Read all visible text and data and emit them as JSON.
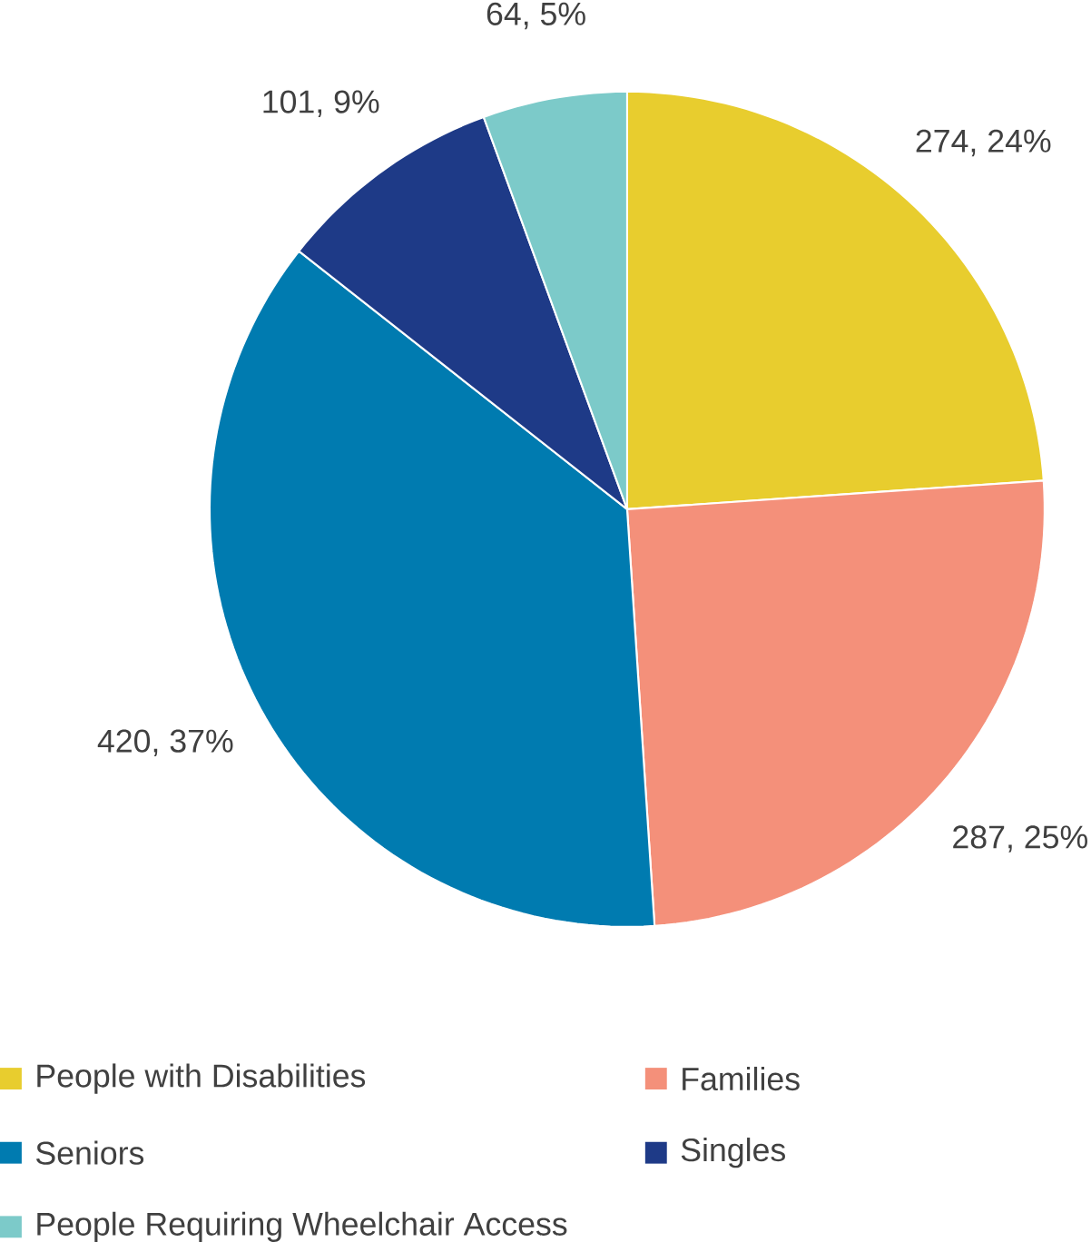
{
  "chart_data": {
    "type": "pie",
    "categories": [
      "People with Disabilities",
      "Families",
      "Seniors",
      "Singles",
      "People Requiring Wheelchair Access"
    ],
    "values": [
      274,
      287,
      420,
      101,
      64
    ],
    "colors": [
      "#e8cd2e",
      "#f4907a",
      "#007bb0",
      "#1e3a87",
      "#7ccac9"
    ],
    "value_labels": [
      "274, 24%",
      "287, 25%",
      "420, 37%",
      "101, 9%",
      "64, 5%"
    ],
    "legend": "bottom"
  }
}
